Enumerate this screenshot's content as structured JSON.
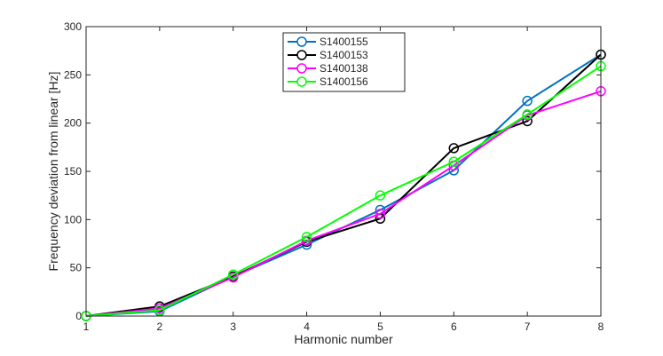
{
  "chart_data": {
    "type": "line",
    "title": "",
    "xlabel": "Harmonic number",
    "ylabel": "Frequency deviation from linear [Hz]",
    "xlim": [
      1,
      8
    ],
    "ylim": [
      0,
      300
    ],
    "x_ticks": [
      1,
      2,
      3,
      4,
      5,
      6,
      7,
      8
    ],
    "y_ticks": [
      0,
      50,
      100,
      150,
      200,
      250,
      300
    ],
    "grid": false,
    "legend_position": "top-center",
    "x": [
      1,
      2,
      3,
      4,
      5,
      6,
      7,
      8
    ],
    "series": [
      {
        "name": "S1400155",
        "color": "#0072bd",
        "values": [
          0,
          5,
          41,
          74,
          110,
          151,
          223,
          271
        ]
      },
      {
        "name": "S1400153",
        "color": "#000000",
        "values": [
          0,
          10,
          41,
          77,
          101,
          174,
          202,
          271
        ]
      },
      {
        "name": "S1400138",
        "color": "#ff00ff",
        "values": [
          0,
          8,
          40,
          78,
          106,
          156,
          208,
          233
        ]
      },
      {
        "name": "S1400156",
        "color": "#00ff00",
        "values": [
          0,
          6,
          43,
          82,
          125,
          160,
          209,
          259
        ]
      }
    ]
  }
}
